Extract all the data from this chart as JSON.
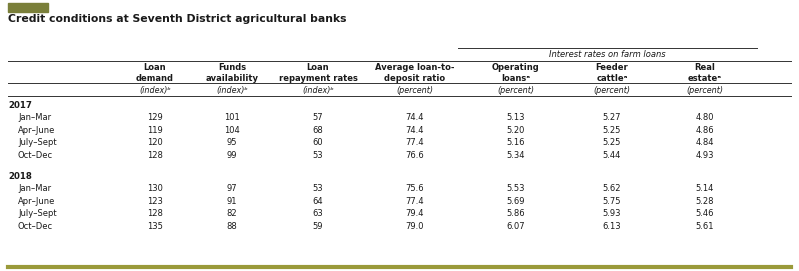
{
  "title": "Credit conditions at Seventh District agricultural banks",
  "interest_rates_header": "Interest rates on farm loans",
  "col_header_labels": [
    "Loan\ndemand",
    "Funds\navailability",
    "Loan\nrepayment rates",
    "Average loan-to-\ndeposit ratio",
    "Operating\nloansᵃ",
    "Feeder\ncattleᵃ",
    "Real\nestateᵃ"
  ],
  "col_subheader_labels": [
    "(index)ᵇ",
    "(index)ᵇ",
    "(index)ᵇ",
    "(percent)",
    "(percent)",
    "(percent)",
    "(percent)"
  ],
  "year_groups": [
    {
      "year": "2017",
      "rows": [
        [
          "Jan–Mar",
          "129",
          "101",
          "57",
          "74.4",
          "5.13",
          "5.27",
          "4.80"
        ],
        [
          "Apr–June",
          "119",
          "104",
          "68",
          "74.4",
          "5.20",
          "5.25",
          "4.86"
        ],
        [
          "July–Sept",
          "120",
          "95",
          "60",
          "77.4",
          "5.16",
          "5.25",
          "4.84"
        ],
        [
          "Oct–Dec",
          "128",
          "99",
          "53",
          "76.6",
          "5.34",
          "5.44",
          "4.93"
        ]
      ]
    },
    {
      "year": "2018",
      "rows": [
        [
          "Jan–Mar",
          "130",
          "97",
          "53",
          "75.6",
          "5.53",
          "5.62",
          "5.14"
        ],
        [
          "Apr–June",
          "123",
          "91",
          "64",
          "77.4",
          "5.69",
          "5.75",
          "5.28"
        ],
        [
          "July–Sept",
          "128",
          "82",
          "63",
          "79.4",
          "5.86",
          "5.93",
          "5.46"
        ],
        [
          "Oct–Dec",
          "135",
          "88",
          "59",
          "79.0",
          "6.07",
          "6.13",
          "5.61"
        ]
      ]
    }
  ],
  "bg_color": "#ffffff",
  "top_bar_color": "#7a7f3a",
  "bottom_bar_color": "#9a9a3a",
  "fig_width": 7.99,
  "fig_height": 2.71,
  "dpi": 100
}
